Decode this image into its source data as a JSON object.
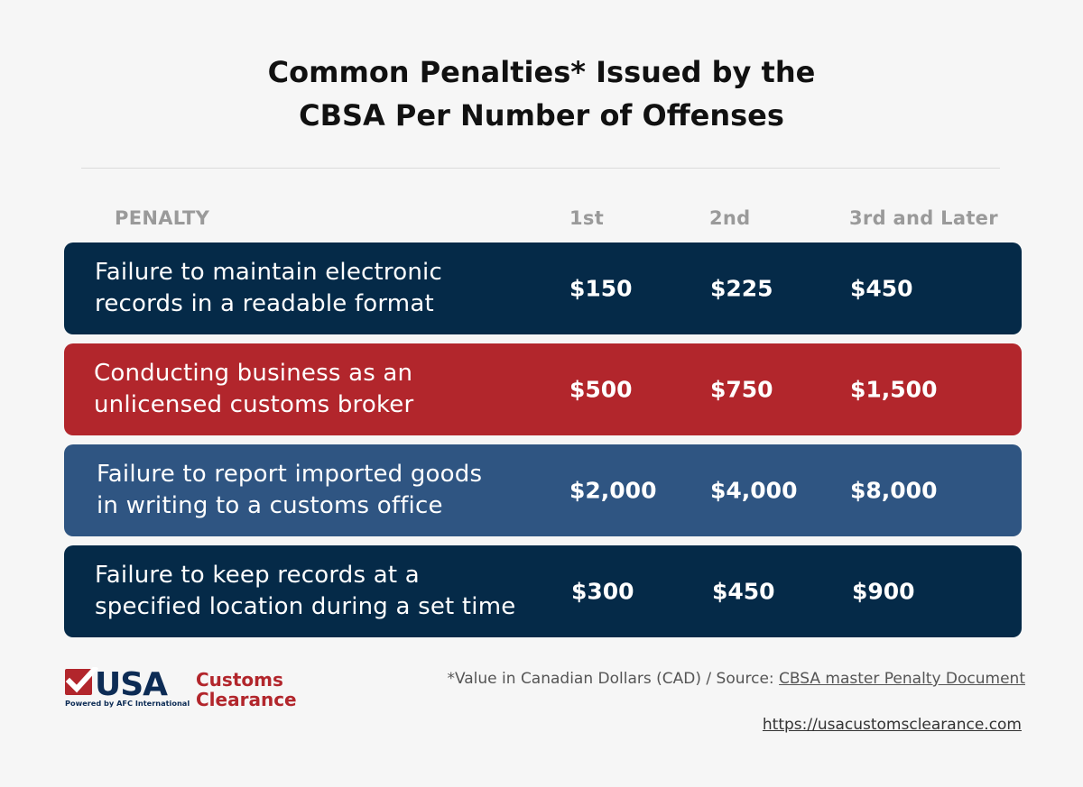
{
  "title": {
    "line1": "Common Penalties* Issued by the",
    "line2": "CBSA Per Number of Offenses"
  },
  "columns": {
    "penalty": "PENALTY",
    "first": "1st",
    "second": "2nd",
    "third": "3rd and Later"
  },
  "rows": [
    {
      "line1": "Failure to maintain electronic",
      "line2": "records in a readable format",
      "first": "$150",
      "second": "$225",
      "third": "$450",
      "color": "#052a48"
    },
    {
      "line1": "Conducting business as an",
      "line2": "unlicensed customs broker",
      "first": "$500",
      "second": "$750",
      "third": "$1,500",
      "color": "#b2262c"
    },
    {
      "line1": "Failure to report imported goods",
      "line2": "in writing to a customs office",
      "first": "$2,000",
      "second": "$4,000",
      "third": "$8,000",
      "color": "#2f5582"
    },
    {
      "line1": "Failure to keep records at a",
      "line2": "specified location during a set time",
      "first": "$300",
      "second": "$450",
      "third": "$900",
      "color": "#052a48"
    }
  ],
  "logo": {
    "usa": "USA",
    "customs": "Customs",
    "clearance": "Clearance",
    "powered": "Powered by AFC International",
    "red": "#b2262c",
    "navy": "#0d2c55"
  },
  "footnote": {
    "text": "*Value in Canadian Dollars (CAD) / Source: ",
    "link": "CBSA master Penalty Document"
  },
  "url": "https://usacustomsclearance.com"
}
